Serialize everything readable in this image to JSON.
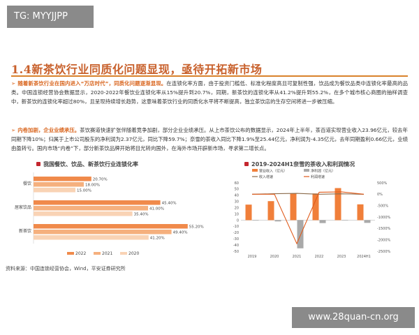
{
  "watermark_tag": "TG: MYYJJPP",
  "watermark_site": "www.28quan-cn.org",
  "heading": "1.4新茶饮行业同质化问题显现，亟待开拓新市场",
  "para1": {
    "lead": "随着新茶饮行业在国内进入“万店时代”，同质化问题逐渐显现。",
    "body": "在连锁化率方面，由于投资门槛低、标准化程度高且可复制性强，饮品成为餐饮品类中连锁化率最高的品类。中国连锁经营协会数据显示，2020-2022年餐饮业连锁化率从15%提升到20.7%，同期，新茶饮的连锁化率从41.2%提升到55.2%，在多个城市核心商圈的抽样调查中，新茶饮的连锁化率超过80%，且呈现持续增长趋势，这意味着茶饮行业的同质化水平将不断提高，独立茶饮店的生存空间将进一步被压缩。"
  },
  "para2": {
    "lead": "内卷加剧，企业业绩承压。",
    "body": "茶饮赛道快速扩张伴随着竞争加剧，部分企业业绩承压。从上市茶饮公布的数据显示，2024年上半年，茶百道实现营业收入23.96亿元，较去年同期下降10%；归属于上市公司股东的净利润为2.37亿元，同比下降59.7%；奈雪的茶收入同比下降1.9%至25.44亿元，净利润为-4.35亿元，去年同期盈利0.66亿元，业绩由盈转亏。国内市场“内卷”下，部分新茶饮品牌开始将目光转向国外，在海外市场开辟新市场，寻求第二增长点。"
  },
  "colors": {
    "c2022": "#f08a4b",
    "c2021": "#f5b07e",
    "c2020": "#f9d3b5",
    "revenue": "#f07f3a",
    "profit": "#a9a9a9",
    "rev_growth": "#8a6a4a",
    "profit_growth": "#e05a1a",
    "accent": "#c8602b"
  },
  "source": "资料来源：中国连锁经营协会，Wind，平安证券研究所",
  "chart_data": [
    {
      "type": "bar",
      "orientation": "horizontal",
      "title": "我国餐饮、饮品、新茶饮行业连锁化率",
      "categories": [
        "餐饮",
        "居家饮品",
        "新茶饮"
      ],
      "series": [
        {
          "name": "2022",
          "values": [
            20.7,
            45.4,
            55.2
          ],
          "labels": [
            "20.70%",
            "45.40%",
            "55.20%"
          ]
        },
        {
          "name": "2021",
          "values": [
            18.0,
            41.0,
            49.4
          ],
          "labels": [
            "18.00%",
            "41.00%",
            "49.40%"
          ]
        },
        {
          "name": "2020",
          "values": [
            15.0,
            35.4,
            41.2
          ],
          "labels": [
            "15.00%",
            "35.40%",
            "41.20%"
          ]
        }
      ],
      "legend": [
        "2022",
        "2021",
        "2020"
      ],
      "legend_position": "bottom",
      "xlim": [
        0,
        60
      ]
    },
    {
      "type": "bar",
      "title": "2019-2024H1奈雪的茶收入和利润情况",
      "categories": [
        "2019",
        "2020",
        "2021",
        "2022",
        "2023",
        "2024H1"
      ],
      "series": [
        {
          "name": "营业收入（亿元）",
          "type": "bar",
          "axis": "left",
          "values": [
            25.0,
            30.6,
            42.97,
            42.92,
            51.6,
            25.44
          ]
        },
        {
          "name": "净利润（亿元）",
          "type": "bar",
          "axis": "left",
          "values": [
            -0.4,
            -2.0,
            -45.3,
            -4.7,
            0.13,
            -4.35
          ]
        },
        {
          "name": "收入增速",
          "type": "line",
          "axis": "right",
          "values": [
            0,
            22.4,
            40.4,
            -0.1,
            20.2,
            -1.9
          ]
        },
        {
          "name": "利润增速",
          "type": "line",
          "axis": "right",
          "values": [
            0,
            0,
            -2165,
            89.6,
            102.8,
            0
          ]
        }
      ],
      "legend_position": "top",
      "ylim_left": [
        -50,
        60
      ],
      "yticks_left": [
        "60",
        "50",
        "40",
        "30",
        "20",
        "10",
        "0",
        "-10",
        "-20",
        "-30",
        "-40",
        "-50"
      ],
      "ylim_right": [
        -2500,
        500
      ],
      "yticks_right": [
        "500%",
        "0%",
        "-500%",
        "-1000%",
        "-1500%",
        "-2000%",
        "-2500%"
      ]
    }
  ]
}
